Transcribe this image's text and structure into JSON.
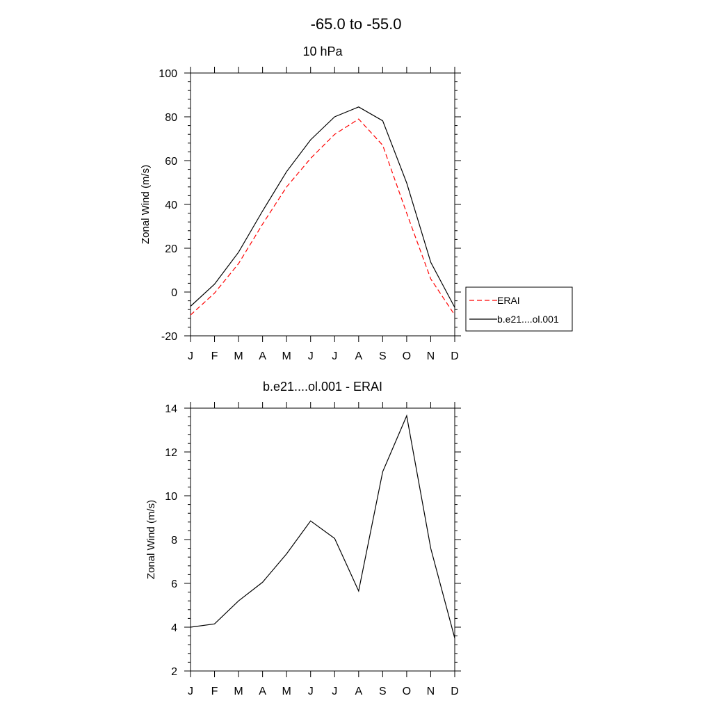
{
  "figure": {
    "title": "-65.0 to -55.0"
  },
  "chart_data": [
    {
      "type": "line",
      "title": "10 hPa",
      "xlabel": "",
      "ylabel": "Zonal Wind (m/s)",
      "categories": [
        "J",
        "F",
        "M",
        "A",
        "M",
        "J",
        "J",
        "A",
        "S",
        "O",
        "N",
        "D"
      ],
      "ylim": [
        -20,
        100
      ],
      "yticks": [
        -20,
        0,
        20,
        40,
        60,
        80,
        100
      ],
      "grid": false,
      "legend_position": "right",
      "series": [
        {
          "name": "ERAI",
          "color": "#ff0000",
          "style": "dashed",
          "values": [
            -10.5,
            -0.5,
            13,
            31,
            48,
            61,
            72,
            79,
            67,
            36,
            6,
            -10.5
          ]
        },
        {
          "name": "b.e21....ol.001",
          "color": "#000000",
          "style": "solid",
          "values": [
            -6.5,
            3.6,
            18.2,
            37,
            55,
            69.5,
            80,
            84.5,
            78.2,
            49.8,
            13.6,
            -7
          ]
        }
      ]
    },
    {
      "type": "line",
      "title": "b.e21....ol.001 - ERAI",
      "xlabel": "",
      "ylabel": "Zonal Wind (m/s)",
      "categories": [
        "J",
        "F",
        "M",
        "A",
        "M",
        "J",
        "J",
        "A",
        "S",
        "O",
        "N",
        "D"
      ],
      "ylim": [
        2,
        14
      ],
      "yticks": [
        2,
        4,
        6,
        8,
        10,
        12,
        14
      ],
      "grid": false,
      "series": [
        {
          "color": "#000000",
          "style": "solid",
          "values": [
            4.0,
            4.15,
            5.2,
            6.05,
            7.35,
            8.85,
            8.05,
            5.65,
            11.1,
            13.65,
            7.6,
            3.5
          ]
        }
      ]
    }
  ]
}
